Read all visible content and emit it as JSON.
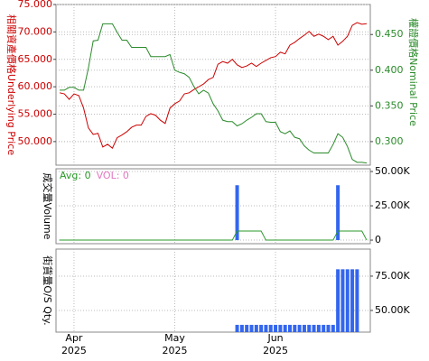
{
  "chart_data": [
    {
      "type": "line",
      "ylabel": "相關資產價格Underlying Price",
      "y2label": "權證價格Nominal Price",
      "ylim": [
        45.7,
        75
      ],
      "yticks": [
        {
          "value": 50,
          "label": "50.000"
        },
        {
          "value": 55,
          "label": "55.000"
        },
        {
          "value": 60,
          "label": "60.000"
        },
        {
          "value": 65,
          "label": "65.000"
        },
        {
          "value": 70,
          "label": "70.000"
        },
        {
          "value": 75,
          "label": "75.000"
        }
      ],
      "y2lim": [
        0.267,
        0.492
      ],
      "y2ticks": [
        {
          "value": 0.3,
          "label": "0.300"
        },
        {
          "value": 0.35,
          "label": "0.350"
        },
        {
          "value": 0.4,
          "label": "0.400"
        },
        {
          "value": 0.45,
          "label": "0.450"
        }
      ],
      "ycolor": "#cc0000",
      "y2color": "#2a8a2a",
      "grid": true,
      "series": [
        {
          "color": "#cc0000",
          "values": [
            58.9,
            58.7,
            57.7,
            58.7,
            58.4,
            56.1,
            52.5,
            51.3,
            51.5,
            49.0,
            49.5,
            48.8,
            50.7,
            51.2,
            51.8,
            52.6,
            53.0,
            53.0,
            54.6,
            55.1,
            54.8,
            53.9,
            53.3,
            56.1,
            56.9,
            57.4,
            58.7,
            58.9,
            59.5,
            60.0,
            60.5,
            61.3,
            61.7,
            64.1,
            64.6,
            64.3,
            65.0,
            64.0,
            63.5,
            63.8,
            64.3,
            63.7,
            64.3,
            64.8,
            65.3,
            65.5,
            66.3,
            66.0,
            67.6,
            68.1,
            68.8,
            69.4,
            70.1,
            69.2,
            69.6,
            69.2,
            68.6,
            69.2,
            67.6,
            68.3,
            69.2,
            71.2,
            71.7,
            71.4,
            71.5
          ]
        },
        {
          "color": "#2a8a2a",
          "axis": "y2",
          "values": [
            0.372,
            0.372,
            0.376,
            0.376,
            0.372,
            0.372,
            0.403,
            0.441,
            0.442,
            0.465,
            0.465,
            0.465,
            0.453,
            0.442,
            0.442,
            0.432,
            0.432,
            0.432,
            0.432,
            0.419,
            0.419,
            0.419,
            0.419,
            0.422,
            0.4,
            0.397,
            0.395,
            0.39,
            0.377,
            0.367,
            0.372,
            0.368,
            0.353,
            0.343,
            0.33,
            0.328,
            0.328,
            0.322,
            0.325,
            0.33,
            0.334,
            0.339,
            0.339,
            0.328,
            0.327,
            0.327,
            0.314,
            0.311,
            0.315,
            0.306,
            0.304,
            0.294,
            0.288,
            0.284,
            0.284,
            0.284,
            0.284,
            0.296,
            0.311,
            0.306,
            0.293,
            0.275,
            0.271,
            0.271,
            0.27
          ]
        }
      ]
    },
    {
      "type": "bar",
      "ylabel": "成交量Volume",
      "legend": [
        {
          "label": "Avg: 0",
          "color": "#2a9a2a"
        },
        {
          "label": "VOL: 0",
          "color": "#e377c2"
        }
      ],
      "ylim": [
        -2600,
        52000
      ],
      "yticks": [
        0,
        {
          "value": 25000,
          "label": "25.00K"
        },
        {
          "value": 50000,
          "label": "50.00K"
        }
      ],
      "grid": true,
      "series": [
        {
          "type": "bar",
          "color": "#3366ee",
          "values": [
            0,
            0,
            0,
            0,
            0,
            0,
            0,
            0,
            0,
            0,
            0,
            0,
            0,
            0,
            0,
            0,
            0,
            0,
            0,
            0,
            0,
            0,
            0,
            0,
            0,
            0,
            0,
            0,
            0,
            0,
            0,
            0,
            0,
            0,
            0,
            0,
            0,
            40000,
            0,
            0,
            0,
            0,
            0,
            0,
            0,
            0,
            0,
            0,
            0,
            0,
            0,
            0,
            0,
            0,
            0,
            0,
            0,
            0,
            40000,
            0,
            0,
            0,
            0,
            0,
            0
          ]
        },
        {
          "type": "line",
          "color": "#2a9a2a",
          "values": [
            0,
            0,
            0,
            0,
            0,
            0,
            0,
            0,
            0,
            0,
            0,
            0,
            0,
            0,
            0,
            0,
            0,
            0,
            0,
            0,
            0,
            0,
            0,
            0,
            0,
            0,
            0,
            0,
            0,
            0,
            0,
            0,
            0,
            0,
            0,
            0,
            0,
            6600,
            6600,
            6600,
            6600,
            6600,
            6600,
            0,
            0,
            0,
            0,
            0,
            0,
            0,
            0,
            0,
            0,
            0,
            0,
            0,
            0,
            0,
            6600,
            6600,
            6600,
            6600,
            6600,
            6600,
            0
          ]
        }
      ]
    },
    {
      "type": "bar",
      "ylabel": "街貨量O/S Qty.",
      "ylim": [
        34200,
        94700
      ],
      "yticks": [
        {
          "value": 50000,
          "label": "50.00K"
        },
        {
          "value": 75000,
          "label": "75.00K"
        }
      ],
      "grid": true,
      "categories": [
        null,
        null,
        null,
        "Apr\n2025",
        null,
        null,
        null,
        null,
        null,
        null,
        null,
        null,
        null,
        null,
        null,
        null,
        null,
        null,
        null,
        null,
        null,
        null,
        null,
        null,
        "May\n2025",
        null,
        null,
        null,
        null,
        null,
        null,
        null,
        null,
        null,
        null,
        null,
        null,
        null,
        null,
        null,
        null,
        null,
        null,
        null,
        null,
        "Jun\n2025",
        null,
        null,
        null,
        null,
        null,
        null,
        null,
        null,
        null,
        null,
        null,
        null,
        null,
        null,
        null,
        null,
        null,
        null,
        null
      ],
      "series": [
        {
          "type": "bar",
          "color": "#3366ee",
          "values": [
            null,
            null,
            null,
            null,
            null,
            null,
            null,
            null,
            null,
            null,
            null,
            null,
            null,
            null,
            null,
            null,
            null,
            null,
            null,
            null,
            null,
            null,
            null,
            null,
            null,
            null,
            null,
            null,
            null,
            null,
            null,
            null,
            null,
            null,
            null,
            null,
            null,
            39500,
            39500,
            39500,
            39500,
            39500,
            39500,
            39500,
            39500,
            39500,
            39500,
            39500,
            39500,
            39500,
            39500,
            39500,
            39500,
            39500,
            39500,
            39500,
            39500,
            39500,
            80000,
            80000,
            80000,
            80000,
            80000,
            null,
            null
          ]
        }
      ]
    }
  ]
}
